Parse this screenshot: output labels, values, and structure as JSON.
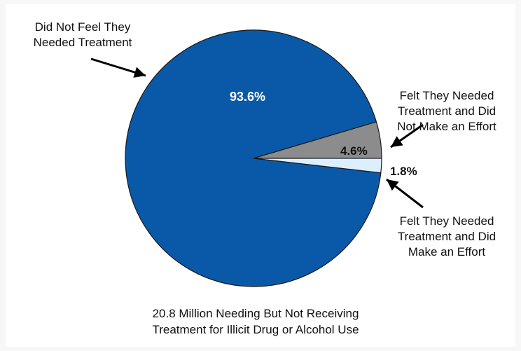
{
  "chart_data": {
    "type": "pie",
    "title": "",
    "caption": "20.8 Million Needing But Not Receiving\nTreatment for Illicit Drug or Alcohol Use",
    "slices": [
      {
        "label": "Did Not Feel They\nNeeded Treatment",
        "value": 93.6,
        "value_label": "93.6%",
        "color": "#0a59a8"
      },
      {
        "label": "Felt They Needed\nTreatment and Did\nNot Make an Effort",
        "value": 4.6,
        "value_label": "4.6%",
        "color": "#8c8c8c"
      },
      {
        "label": "Felt They Needed\nTreatment and Did\nMake an Effort",
        "value": 1.8,
        "value_label": "1.8%",
        "color": "#dcefff"
      }
    ]
  }
}
